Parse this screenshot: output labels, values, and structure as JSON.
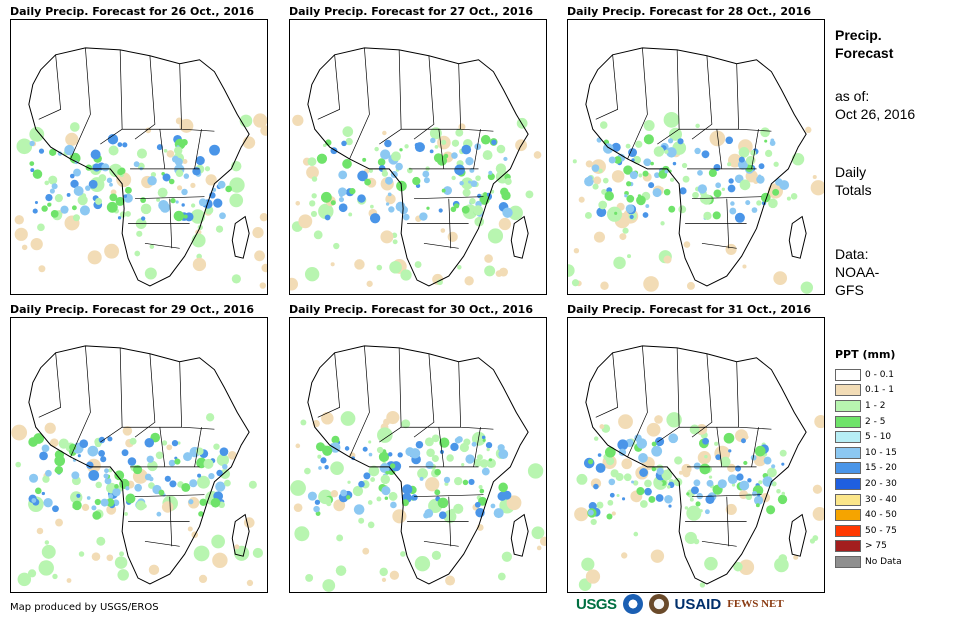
{
  "panels": [
    {
      "title": "Daily Precip. Forecast for 26 Oct., 2016"
    },
    {
      "title": "Daily Precip. Forecast for 27 Oct., 2016"
    },
    {
      "title": "Daily Precip. Forecast for 28 Oct., 2016"
    },
    {
      "title": "Daily Precip. Forecast for 29 Oct., 2016"
    },
    {
      "title": "Daily Precip. Forecast for 30 Oct., 2016"
    },
    {
      "title": "Daily Precip. Forecast for 31 Oct., 2016"
    }
  ],
  "sidebar": {
    "title_line1": "Precip.",
    "title_line2": "Forecast",
    "asof_label": "as of:",
    "asof_date": "Oct 26, 2016",
    "totals_line1": "Daily",
    "totals_line2": "Totals",
    "data_line1": "Data:",
    "data_line2": "NOAA-",
    "data_line3": "GFS"
  },
  "legend": {
    "title": "PPT (mm)",
    "items": [
      {
        "label": "0 - 0.1",
        "color": "#ffffff"
      },
      {
        "label": "0.1 - 1",
        "color": "#f2dcb6"
      },
      {
        "label": "1 - 2",
        "color": "#b8f5b0"
      },
      {
        "label": "2 - 5",
        "color": "#6fe36a"
      },
      {
        "label": "5 - 10",
        "color": "#b7eef5"
      },
      {
        "label": "10 - 15",
        "color": "#8cc8f2"
      },
      {
        "label": "15 - 20",
        "color": "#4a95e8"
      },
      {
        "label": "20 - 30",
        "color": "#1f5fe0"
      },
      {
        "label": "30 - 40",
        "color": "#fbe68a"
      },
      {
        "label": "40 - 50",
        "color": "#f5a400"
      },
      {
        "label": "50 - 75",
        "color": "#ff3800"
      },
      {
        "label": "> 75",
        "color": "#a31e1e"
      },
      {
        "label": "No Data",
        "color": "#8f8f8f"
      }
    ]
  },
  "footer": {
    "credit": "Map produced by USGS/EROS",
    "logos": [
      "USGS",
      "NOAA",
      "DOI",
      "USAID",
      "FEWS NET"
    ]
  }
}
